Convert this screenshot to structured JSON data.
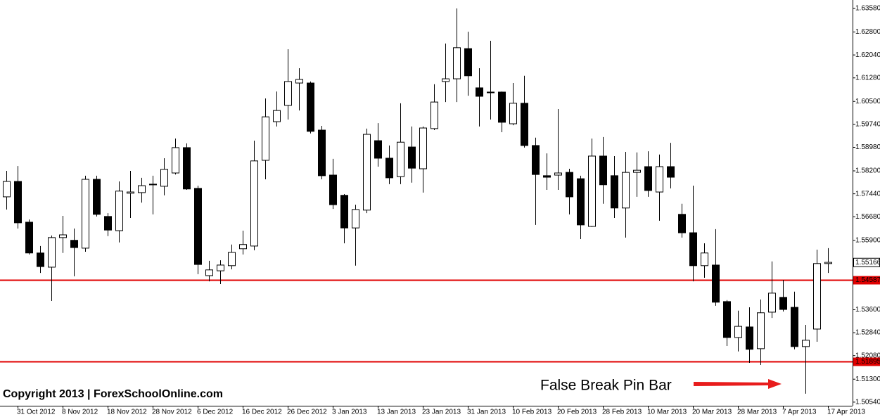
{
  "chart_data": {
    "type": "candlestick",
    "categories": [
      null,
      "31 Oct 2012",
      null,
      null,
      null,
      "8 Nov 2012",
      null,
      null,
      null,
      "18 Nov 2012",
      null,
      null,
      null,
      "28 Nov 2012",
      null,
      null,
      null,
      "6 Dec 2012",
      null,
      null,
      null,
      "16 Dec 2012",
      null,
      null,
      null,
      "26 Dec 2012",
      null,
      null,
      null,
      "3 Jan 2013",
      null,
      null,
      null,
      "13 Jan 2013",
      null,
      null,
      null,
      "23 Jan 2013",
      null,
      null,
      null,
      "31 Jan 2013",
      null,
      null,
      null,
      "10 Feb 2013",
      null,
      null,
      null,
      "20 Feb 2013",
      null,
      null,
      null,
      "28 Feb 2013",
      null,
      null,
      null,
      "10 Mar 2013",
      null,
      null,
      null,
      "20 Mar 2013",
      null,
      null,
      null,
      "28 Mar 2013",
      null,
      null,
      null,
      "7 Apr 2013",
      null,
      null,
      null,
      "17 Apr 2013"
    ],
    "open": [
      1.5734,
      1.5785,
      1.565,
      1.5548,
      1.5501,
      1.5599,
      1.559,
      1.5564,
      1.5792,
      1.5669,
      1.5622,
      1.5746,
      1.5748,
      1.5774,
      1.5769,
      1.5813,
      1.5897,
      1.5762,
      1.5473,
      1.5489,
      1.5506,
      1.5562,
      1.5571,
      1.5855,
      1.5983,
      1.6037,
      1.6111,
      1.6111,
      1.5955,
      1.5806,
      1.5739,
      1.5631,
      1.569,
      1.592,
      1.5862,
      1.5801,
      1.5899,
      1.5827,
      1.596,
      1.6116,
      1.6125,
      1.6225,
      1.6095,
      1.6081,
      1.6081,
      1.5976,
      1.6044,
      1.5904,
      1.5804,
      1.5806,
      1.5815,
      1.5794,
      1.5636,
      1.5869,
      1.5804,
      1.5697,
      1.5815,
      1.5834,
      1.575,
      1.5834,
      1.5676,
      1.5615,
      1.5506,
      1.5508,
      1.5387,
      1.5268,
      1.5303,
      1.5231,
      1.5352,
      1.5401,
      1.5368,
      1.5238,
      1.5296,
      1.5513
    ],
    "high": [
      1.582,
      1.5836,
      1.5659,
      1.5571,
      1.5606,
      1.5671,
      1.5629,
      1.5804,
      1.5804,
      1.568,
      1.5785,
      1.582,
      1.5797,
      1.5804,
      1.5862,
      1.5927,
      1.5911,
      1.5771,
      1.5522,
      1.5524,
      1.5576,
      1.5622,
      1.592,
      1.606,
      1.6083,
      1.6223,
      1.616,
      1.6116,
      1.5969,
      1.586,
      1.5743,
      1.5708,
      1.596,
      1.5978,
      1.5904,
      1.6044,
      1.5967,
      1.5967,
      1.6107,
      1.6242,
      1.6358,
      1.6281,
      1.616,
      1.6251,
      1.6083,
      1.6111,
      1.6135,
      1.593,
      1.5878,
      1.6025,
      1.5827,
      1.5804,
      1.5927,
      1.5932,
      1.5869,
      1.5883,
      1.5881,
      1.5885,
      1.5874,
      1.5913,
      1.5711,
      1.5771,
      1.558,
      1.5627,
      1.5392,
      1.5357,
      1.5368,
      1.5394,
      1.552,
      1.5459,
      1.542,
      1.531,
      1.5559,
      1.5564
    ],
    "low": [
      1.5692,
      1.5629,
      1.5543,
      1.5482,
      1.5389,
      1.5548,
      1.5471,
      1.5552,
      1.5669,
      1.5604,
      1.5583,
      1.5664,
      1.5715,
      1.5676,
      1.5739,
      1.5808,
      1.5757,
      1.5478,
      1.5454,
      1.5445,
      1.5494,
      1.5543,
      1.5557,
      1.5792,
      1.5967,
      1.599,
      1.602,
      1.5944,
      1.5792,
      1.5694,
      1.558,
      1.5506,
      1.568,
      1.5834,
      1.5776,
      1.5776,
      1.5781,
      1.5748,
      1.5955,
      1.6048,
      1.6048,
      1.6069,
      1.5967,
      1.599,
      1.5948,
      1.5971,
      1.5897,
      1.5641,
      1.5757,
      1.5757,
      1.5676,
      1.5594,
      1.5634,
      1.5711,
      1.5664,
      1.5599,
      1.5734,
      1.5734,
      1.5655,
      1.5762,
      1.5599,
      1.5454,
      1.5466,
      1.5373,
      1.524,
      1.5222,
      1.5184,
      1.5177,
      1.5333,
      1.5354,
      1.5229,
      1.5082,
      1.5254,
      1.5482
    ],
    "close": [
      1.5785,
      1.5648,
      1.5548,
      1.5503,
      1.5599,
      1.5608,
      1.5566,
      1.5792,
      1.5676,
      1.5624,
      1.5753,
      1.575,
      1.5771,
      1.5776,
      1.5825,
      1.5897,
      1.576,
      1.551,
      1.5492,
      1.5508,
      1.555,
      1.5576,
      1.5853,
      1.5999,
      1.602,
      1.6116,
      1.6123,
      1.5951,
      1.5804,
      1.5708,
      1.5631,
      1.5692,
      1.5941,
      1.5862,
      1.5797,
      1.5915,
      1.5829,
      1.5962,
      1.6048,
      1.6125,
      1.6228,
      1.6135,
      1.6067,
      1.6079,
      1.5981,
      1.6044,
      1.5904,
      1.5808,
      1.5799,
      1.5813,
      1.5734,
      1.5641,
      1.5869,
      1.5774,
      1.5697,
      1.5815,
      1.5822,
      1.5755,
      1.5834,
      1.5799,
      1.5615,
      1.5506,
      1.5548,
      1.5385,
      1.5268,
      1.5305,
      1.5229,
      1.535,
      1.5415,
      1.5361,
      1.5238,
      1.5259,
      1.5513,
      1.5517
    ],
    "up_color": "#ffffff",
    "down_color": "#000000",
    "wick_color": "#000000",
    "ylim": [
      1.5042,
      1.6386
    ],
    "yticks": [
      {
        "value": 1.6358,
        "label": "1.63580"
      },
      {
        "value": 1.628,
        "label": "1.62800"
      },
      {
        "value": 1.6204,
        "label": "1.62040"
      },
      {
        "value": 1.6128,
        "label": "1.61280"
      },
      {
        "value": 1.605,
        "label": "1.60500"
      },
      {
        "value": 1.5974,
        "label": "1.59740"
      },
      {
        "value": 1.5898,
        "label": "1.58980"
      },
      {
        "value": 1.582,
        "label": "1.58200"
      },
      {
        "value": 1.5744,
        "label": "1.57440"
      },
      {
        "value": 1.5668,
        "label": "1.56680"
      },
      {
        "value": 1.559,
        "label": "1.55900"
      },
      {
        "value": 1.536,
        "label": "1.53600"
      },
      {
        "value": 1.5284,
        "label": "1.52840"
      },
      {
        "value": 1.5208,
        "label": "1.52080"
      },
      {
        "value": 1.513,
        "label": "1.51300"
      },
      {
        "value": 1.5054,
        "label": "1.50540"
      }
    ],
    "hlines": [
      {
        "value": 1.54587,
        "color": "#e00000"
      },
      {
        "value": 1.51895,
        "color": "#e00000"
      }
    ],
    "last_price": 1.55166,
    "annotation": {
      "text": "False Break Pin Bar",
      "color": "#e81c1c"
    },
    "copyright": "Copyright 2013 | ForexSchoolOnline.com"
  }
}
